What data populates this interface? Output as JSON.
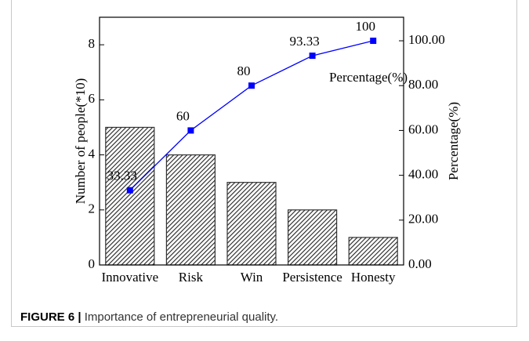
{
  "chart_data": {
    "type": "bar",
    "categories": [
      "Innovative",
      "Risk",
      "Win",
      "Persistence",
      "Honesty"
    ],
    "series": [
      {
        "type": "bar",
        "color": "#333333",
        "values": [
          5,
          4,
          3,
          2,
          1
        ]
      },
      {
        "type": "line",
        "name": "Percentage(%)",
        "color": "#0000ff",
        "axis": "y2",
        "values": [
          33.33,
          60,
          80,
          93.33,
          100
        ]
      }
    ],
    "y_label": "Number of people(*10)",
    "y2_label": "Percentage(%)",
    "ylim": [
      0,
      9
    ],
    "yticks": [
      0,
      2,
      4,
      6,
      8
    ],
    "y2lim": [
      0,
      110.5
    ],
    "y2ticks": [
      {
        "value": 0,
        "label": "0.00"
      },
      {
        "value": 20,
        "label": "20.00"
      },
      {
        "value": 40,
        "label": "40.00"
      },
      {
        "value": 60,
        "label": "60.00"
      },
      {
        "value": 80,
        "label": "80.00"
      },
      {
        "value": 100,
        "label": "100.00"
      }
    ]
  },
  "caption": {
    "label": "FIGURE 6 |",
    "text": " Importance of entrepreneurial quality."
  }
}
